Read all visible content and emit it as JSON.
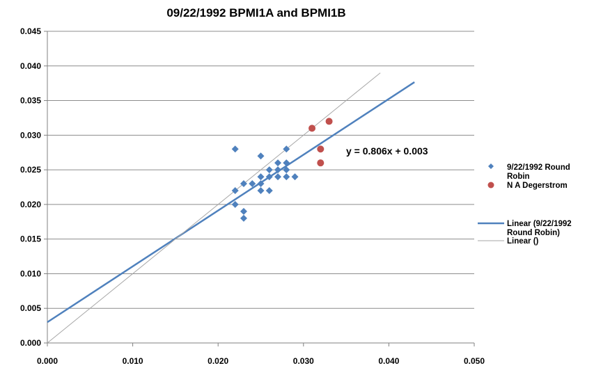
{
  "chart_data": {
    "type": "scatter",
    "title": "09/22/1992 BPMI1A and BPMI1B",
    "xlim": [
      0,
      0.05
    ],
    "ylim": [
      0,
      0.045
    ],
    "x_ticks": [
      "0.000",
      "0.010",
      "0.020",
      "0.030",
      "0.040",
      "0.050"
    ],
    "y_ticks": [
      "0.000",
      "0.005",
      "0.010",
      "0.015",
      "0.020",
      "0.025",
      "0.030",
      "0.035",
      "0.040",
      "0.045"
    ],
    "grid": "horizontal",
    "legend_position": "right",
    "series": [
      {
        "name": "9/22/1992 Round Robin",
        "marker": "diamond",
        "color": "#4F81BD",
        "points": [
          [
            0.022,
            0.028
          ],
          [
            0.022,
            0.022
          ],
          [
            0.022,
            0.02
          ],
          [
            0.023,
            0.023
          ],
          [
            0.023,
            0.019
          ],
          [
            0.023,
            0.018
          ],
          [
            0.024,
            0.023
          ],
          [
            0.025,
            0.027
          ],
          [
            0.025,
            0.024
          ],
          [
            0.025,
            0.023
          ],
          [
            0.025,
            0.022
          ],
          [
            0.026,
            0.025
          ],
          [
            0.026,
            0.024
          ],
          [
            0.026,
            0.022
          ],
          [
            0.027,
            0.026
          ],
          [
            0.027,
            0.025
          ],
          [
            0.027,
            0.024
          ],
          [
            0.028,
            0.028
          ],
          [
            0.028,
            0.026
          ],
          [
            0.028,
            0.025
          ],
          [
            0.028,
            0.024
          ],
          [
            0.029,
            0.024
          ]
        ]
      },
      {
        "name": "N A Degerstrom",
        "marker": "circle",
        "color": "#C0504D",
        "points": [
          [
            0.031,
            0.031
          ],
          [
            0.032,
            0.028
          ],
          [
            0.032,
            0.026
          ],
          [
            0.033,
            0.032
          ]
        ]
      }
    ],
    "trendlines": [
      {
        "name": "Linear (9/22/1992 Round Robin)",
        "color": "#4F81BD",
        "slope": 0.806,
        "intercept": 0.003,
        "x_range": [
          0,
          0.043
        ],
        "equation": "y = 0.806x + 0.003"
      },
      {
        "name": "Linear ()",
        "color": "#A6A6A6",
        "slope": 1,
        "intercept": 0,
        "x_range": [
          0,
          0.039
        ]
      }
    ]
  }
}
